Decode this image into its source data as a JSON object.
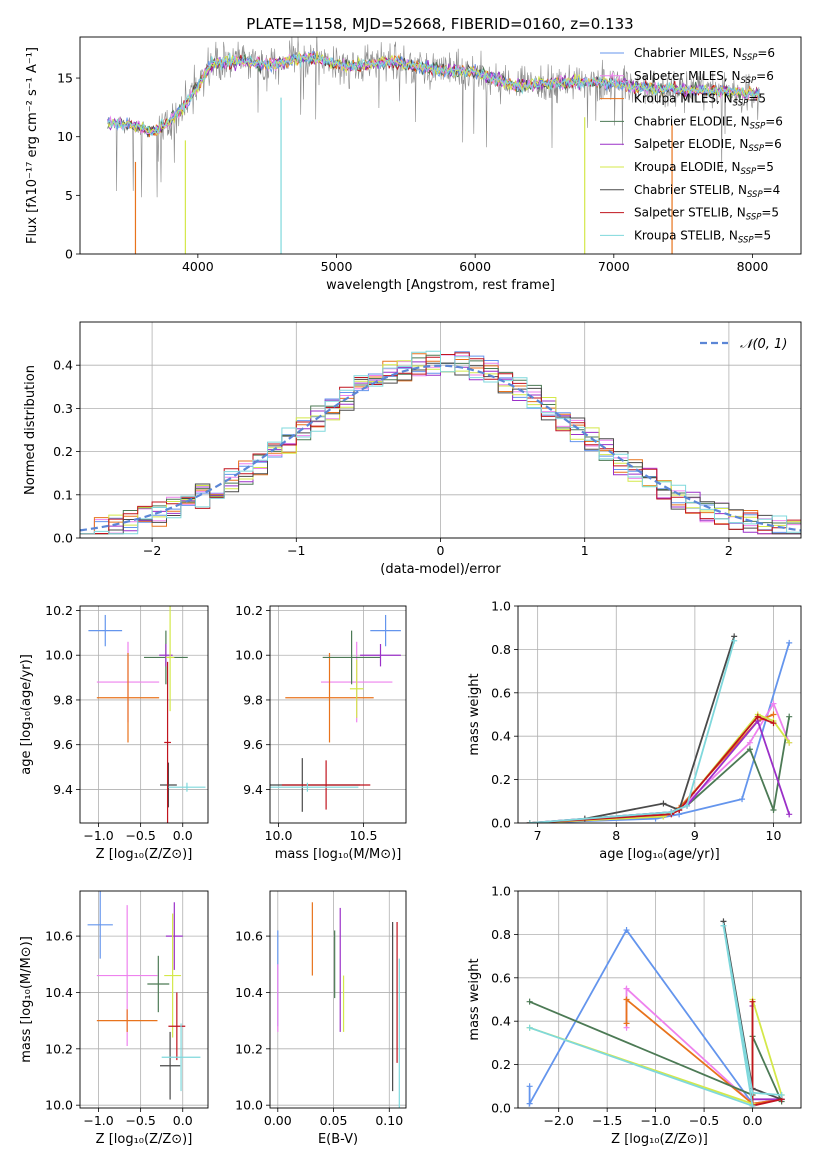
{
  "figure_title": "PLATE=1158, MJD=52668, FIBERID=0160, z=0.133",
  "models": [
    {
      "name": "Chabrier MILES, N",
      "sub": "SSP",
      "n": "=6",
      "color": "#6495ed"
    },
    {
      "name": "Salpeter MILES, N",
      "sub": "SSP",
      "n": "=6",
      "color": "#ee82ee"
    },
    {
      "name": "Kroupa MILES, N",
      "sub": "SSP",
      "n": "=5",
      "color": "#e8731c"
    },
    {
      "name": "Chabrier ELODIE, N",
      "sub": "SSP",
      "n": "=6",
      "color": "#4c7a55"
    },
    {
      "name": "Salpeter ELODIE, N",
      "sub": "SSP",
      "n": "=6",
      "color": "#9b30c8"
    },
    {
      "name": "Kroupa ELODIE, N",
      "sub": "SSP",
      "n": "=5",
      "color": "#d4e84a"
    },
    {
      "name": "Chabrier STELIB, N",
      "sub": "SSP",
      "n": "=4",
      "color": "#4a4a4a"
    },
    {
      "name": "Salpeter STELIB, N",
      "sub": "SSP",
      "n": "=5",
      "color": "#c0141e"
    },
    {
      "name": "Kroupa STELIB, N",
      "sub": "SSP",
      "n": "=5",
      "color": "#7fd8dc"
    }
  ],
  "chart_data": [
    {
      "id": "spectrum",
      "type": "line",
      "title": "PLATE=1158, MJD=52668, FIBERID=0160, z=0.133",
      "xlabel": "wavelength [Angstrom, rest frame]",
      "ylabel": "Flux [fλ10⁻¹⁷ erg cm⁻² s⁻¹ A⁻¹]",
      "xlim": [
        3150,
        8350
      ],
      "ylim": [
        0,
        18.5
      ],
      "xticks": [
        4000,
        5000,
        6000,
        7000,
        8000
      ],
      "yticks": [
        0,
        5,
        10,
        15
      ],
      "data": {
        "x": [
          3350,
          3500,
          3700,
          3900,
          4100,
          4300,
          4500,
          4800,
          5100,
          5400,
          5700,
          6000,
          6300,
          6600,
          6900,
          7200,
          7500,
          7800,
          8050
        ],
        "y": [
          11.2,
          11.0,
          10.4,
          12.5,
          16.2,
          16.5,
          16.1,
          16.8,
          16.0,
          16.4,
          15.7,
          15.5,
          14.3,
          14.6,
          14.7,
          14.2,
          14.0,
          13.9,
          13.6
        ]
      },
      "absorption_dips": [
        [
          3550,
          0
        ],
        [
          3910,
          0
        ],
        [
          4600,
          0
        ],
        [
          6790,
          0
        ],
        [
          7420,
          0
        ]
      ],
      "legend": "upper right"
    },
    {
      "id": "residuals",
      "type": "histogram",
      "xlabel": "(data-model)/error",
      "ylabel": "Normed distribution",
      "xlim": [
        -2.5,
        2.5
      ],
      "ylim": [
        0,
        0.5
      ],
      "xticks": [
        -2,
        -1,
        0,
        1,
        2
      ],
      "yticks": [
        0.0,
        0.1,
        0.2,
        0.3,
        0.4
      ],
      "reference_label": "𝒩(0, 1)",
      "reference_color": "#5b86d6",
      "bins": 50,
      "grid": true
    },
    {
      "id": "age-vs-Z",
      "type": "errorbar",
      "xlabel": "Z [log₁₀(Z/Z⊙)]",
      "ylabel": "age  [log₁₀(age/yr)]",
      "xlim": [
        -1.22,
        0.3
      ],
      "ylim": [
        9.25,
        10.22
      ],
      "xticks": [
        -1.0,
        -0.5,
        0.0
      ],
      "yticks": [
        9.4,
        9.6,
        9.8,
        10.0,
        10.2
      ],
      "points": [
        {
          "x": -0.92,
          "xerr": 0.2,
          "y": 10.11,
          "yerr": 0.07
        },
        {
          "x": -0.65,
          "xerr": 0.37,
          "y": 9.88,
          "yerr": 0.18
        },
        {
          "x": -0.65,
          "xerr": 0.37,
          "y": 9.81,
          "yerr": 0.2
        },
        {
          "x": -0.2,
          "xerr": 0.26,
          "y": 9.99,
          "yerr": 0.12
        },
        {
          "x": -0.2,
          "xerr": 0.08,
          "y": 10.0,
          "yerr": 0.05
        },
        {
          "x": -0.15,
          "xerr": 0.05,
          "y": 9.99,
          "yerr": 0.24
        },
        {
          "x": -0.17,
          "xerr": 0.1,
          "y": 9.42,
          "yerr": 0.1
        },
        {
          "x": -0.18,
          "xerr": 0.04,
          "y": 9.61,
          "yerr": 0.36
        },
        {
          "x": 0.05,
          "xerr": 0.22,
          "y": 9.41,
          "yerr": 0.02
        }
      ],
      "grid": true
    },
    {
      "id": "age-vs-mass",
      "type": "errorbar",
      "xlabel": "mass [log₁₀(M/M⊙)]",
      "xlim": [
        9.95,
        10.75
      ],
      "ylim": [
        9.25,
        10.22
      ],
      "xticks": [
        10.0,
        10.5
      ],
      "yticks": [
        9.4,
        9.6,
        9.8,
        10.0,
        10.2
      ],
      "points": [
        {
          "x": 10.63,
          "xerr": 0.09,
          "y": 10.11,
          "yerr": 0.07
        },
        {
          "x": 10.46,
          "xerr": 0.21,
          "y": 9.88,
          "yerr": 0.18
        },
        {
          "x": 10.3,
          "xerr": 0.26,
          "y": 9.81,
          "yerr": 0.2
        },
        {
          "x": 10.43,
          "xerr": 0.17,
          "y": 9.99,
          "yerr": 0.12
        },
        {
          "x": 10.6,
          "xerr": 0.12,
          "y": 10.0,
          "yerr": 0.05
        },
        {
          "x": 10.46,
          "xerr": 0.04,
          "y": 9.85,
          "yerr": 0.13
        },
        {
          "x": 10.14,
          "xerr": 0.34,
          "y": 9.42,
          "yerr": 0.12
        },
        {
          "x": 10.28,
          "xerr": 0.26,
          "y": 9.42,
          "yerr": 0.11
        },
        {
          "x": 10.17,
          "xerr": 0.3,
          "y": 9.41,
          "yerr": 0.02
        }
      ],
      "grid": true
    },
    {
      "id": "weight-vs-age",
      "type": "line",
      "xlabel": "age  [log₁₀(age/yr)]",
      "ylabel": "mass weight",
      "xlim": [
        6.75,
        10.35
      ],
      "ylim": [
        0,
        1.0
      ],
      "xticks": [
        7,
        8,
        9,
        10
      ],
      "yticks": [
        0.0,
        0.2,
        0.4,
        0.6,
        0.8,
        1.0
      ],
      "series": [
        {
          "x": [
            6.9,
            8.5,
            8.8,
            9.6,
            10.2
          ],
          "y": [
            0.0,
            0.02,
            0.04,
            0.11,
            0.83
          ]
        },
        {
          "x": [
            6.9,
            8.6,
            8.8,
            9.7,
            10.0,
            10.2
          ],
          "y": [
            0.0,
            0.03,
            0.06,
            0.37,
            0.55,
            0.37
          ]
        },
        {
          "x": [
            6.9,
            8.6,
            8.8,
            9.8,
            10.0
          ],
          "y": [
            0.0,
            0.03,
            0.07,
            0.47,
            0.5
          ]
        },
        {
          "x": [
            6.9,
            8.7,
            8.9,
            9.7,
            10.0,
            10.2
          ],
          "y": [
            0.0,
            0.05,
            0.08,
            0.34,
            0.06,
            0.49
          ]
        },
        {
          "x": [
            6.9,
            8.7,
            8.9,
            9.8,
            10.2
          ],
          "y": [
            0.0,
            0.05,
            0.08,
            0.47,
            0.04
          ]
        },
        {
          "x": [
            6.9,
            8.6,
            8.8,
            9.8,
            10.0,
            10.2
          ],
          "y": [
            0.0,
            0.03,
            0.06,
            0.5,
            0.47,
            0.37
          ]
        },
        {
          "x": [
            7.6,
            8.6,
            8.8,
            9.5
          ],
          "y": [
            0.02,
            0.09,
            0.06,
            0.86
          ]
        },
        {
          "x": [
            6.9,
            8.7,
            8.8,
            9.8,
            10.0
          ],
          "y": [
            0.0,
            0.04,
            0.06,
            0.49,
            0.46
          ]
        },
        {
          "x": [
            6.9,
            8.7,
            8.9,
            9.5
          ],
          "y": [
            0.0,
            0.05,
            0.08,
            0.84
          ]
        }
      ],
      "grid": true
    },
    {
      "id": "mass-vs-Z",
      "type": "errorbar",
      "xlabel": "Z [log₁₀(Z/Z⊙)]",
      "ylabel": "mass [log₁₀(M/M⊙)]",
      "xlim": [
        -1.22,
        0.3
      ],
      "ylim": [
        9.99,
        10.76
      ],
      "xticks": [
        -1.0,
        -0.5,
        0.0
      ],
      "yticks": [
        10.0,
        10.2,
        10.4,
        10.6
      ],
      "points": [
        {
          "x": -0.98,
          "xerr": 0.15,
          "y": 10.64,
          "yerr": 0.12
        },
        {
          "x": -0.66,
          "xerr": 0.36,
          "y": 10.46,
          "yerr": 0.25
        },
        {
          "x": -0.66,
          "xerr": 0.36,
          "y": 10.3,
          "yerr": 0.04
        },
        {
          "x": -0.29,
          "xerr": 0.13,
          "y": 10.43,
          "yerr": 0.1
        },
        {
          "x": -0.1,
          "xerr": 0.1,
          "y": 10.6,
          "yerr": 0.12
        },
        {
          "x": -0.12,
          "xerr": 0.1,
          "y": 10.46,
          "yerr": 0.22
        },
        {
          "x": -0.15,
          "xerr": 0.12,
          "y": 10.14,
          "yerr": 0.12
        },
        {
          "x": -0.07,
          "xerr": 0.1,
          "y": 10.28,
          "yerr": 0.12
        },
        {
          "x": -0.02,
          "xerr": 0.23,
          "y": 10.17,
          "yerr": 0.12
        }
      ],
      "grid": true
    },
    {
      "id": "mass-vs-EBV",
      "type": "errorbar",
      "xlabel": "E(B-V)",
      "xlim": [
        -0.007,
        0.115
      ],
      "ylim": [
        9.99,
        10.76
      ],
      "xticks": [
        0.0,
        0.05,
        0.1
      ],
      "yticks": [
        10.0,
        10.2,
        10.4,
        10.6
      ],
      "points": [
        {
          "x": 0.0,
          "y": 10.45,
          "yerr": 0.17
        },
        {
          "x": 0.0,
          "y": 10.38,
          "yerr": 0.12
        },
        {
          "x": 0.031,
          "y": 10.59,
          "yerr": 0.13
        },
        {
          "x": 0.051,
          "y": 10.5,
          "yerr": 0.12
        },
        {
          "x": 0.056,
          "y": 10.48,
          "yerr": 0.22
        },
        {
          "x": 0.059,
          "y": 10.36,
          "yerr": 0.1
        },
        {
          "x": 0.103,
          "y": 10.35,
          "yerr": 0.3
        },
        {
          "x": 0.107,
          "y": 10.4,
          "yerr": 0.25
        },
        {
          "x": 0.109,
          "y": 10.24,
          "yerr": 0.28
        }
      ],
      "grid": true
    },
    {
      "id": "weight-vs-Z",
      "type": "line",
      "xlabel": "Z [log₁₀(Z/Z⊙)]",
      "ylabel": "mass weight",
      "xlim": [
        -2.42,
        0.5
      ],
      "ylim": [
        0,
        1.0
      ],
      "xticks": [
        -2.0,
        -1.5,
        -1.0,
        -0.5,
        0.0
      ],
      "yticks": [
        0.0,
        0.2,
        0.4,
        0.6,
        0.8,
        1.0
      ],
      "series": [
        {
          "x": [
            -2.3,
            -2.3,
            -1.3,
            0.0,
            0.3
          ],
          "y": [
            0.1,
            0.02,
            0.82,
            0.02,
            0.04
          ]
        },
        {
          "x": [
            -1.3,
            -1.3,
            0.0,
            0.3
          ],
          "y": [
            0.37,
            0.55,
            0.02,
            0.04
          ]
        },
        {
          "x": [
            -1.3,
            -1.3,
            0.0,
            0.3
          ],
          "y": [
            0.39,
            0.5,
            0.02,
            0.04
          ]
        },
        {
          "x": [
            -2.3,
            0.0,
            0.0,
            0.3
          ],
          "y": [
            0.49,
            0.06,
            0.33,
            0.03
          ]
        },
        {
          "x": [
            0.0,
            0.0,
            0.3
          ],
          "y": [
            0.47,
            0.04,
            0.04
          ]
        },
        {
          "x": [
            -2.3,
            0.0,
            0.0,
            0.3
          ],
          "y": [
            0.37,
            0.02,
            0.5,
            0.06
          ]
        },
        {
          "x": [
            -0.3,
            0.0,
            0.3
          ],
          "y": [
            0.86,
            0.09,
            0.04
          ]
        },
        {
          "x": [
            0.0,
            0.0,
            0.3
          ],
          "y": [
            0.49,
            0.01,
            0.04
          ]
        },
        {
          "x": [
            -2.3,
            0.0,
            -0.3,
            0.0,
            0.3
          ],
          "y": [
            0.37,
            0.01,
            0.84,
            0.07,
            0.06
          ]
        }
      ],
      "grid": true
    }
  ]
}
